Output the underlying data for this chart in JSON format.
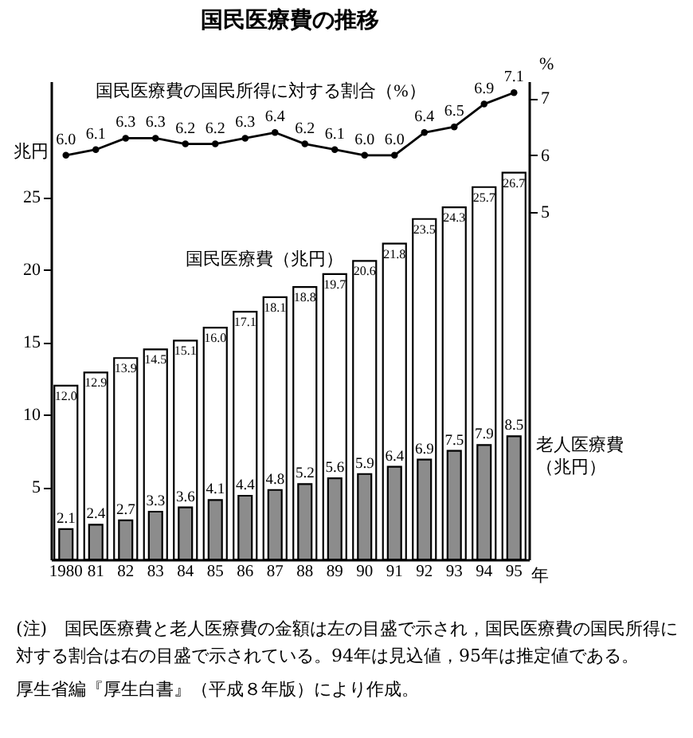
{
  "chart_data": {
    "type": "bar",
    "title": "国民医療費の推移",
    "categories": [
      "1980",
      "81",
      "82",
      "83",
      "84",
      "85",
      "86",
      "87",
      "88",
      "89",
      "90",
      "91",
      "92",
      "93",
      "94",
      "95"
    ],
    "series": [
      {
        "name": "国民医療費（兆円）",
        "color": "#ffffff",
        "values": [
          12.0,
          12.9,
          13.9,
          14.5,
          15.1,
          16.0,
          17.1,
          18.1,
          18.8,
          19.7,
          20.6,
          21.8,
          23.5,
          24.3,
          25.7,
          26.7
        ],
        "value_labels": [
          "12.0",
          "12.9",
          "13.9",
          "14.5",
          "15.1",
          "16.0",
          "17.1",
          "18.1",
          "18.8",
          "19.7",
          "20.6",
          "21.8",
          "23.5",
          "24.3",
          "25.7",
          "26.7"
        ]
      },
      {
        "name": "老人医療費（兆円）",
        "color": "#8c8c8c",
        "values": [
          2.1,
          2.4,
          2.7,
          3.3,
          3.6,
          4.1,
          4.4,
          4.8,
          5.2,
          5.6,
          5.9,
          6.4,
          6.9,
          7.5,
          7.9,
          8.5
        ],
        "value_labels": [
          "2.1",
          "2.4",
          "2.7",
          "3.3",
          "3.6",
          "4.1",
          "4.4",
          "4.8",
          "5.2",
          "5.6",
          "5.9",
          "6.4",
          "6.9",
          "7.5",
          "7.9",
          "8.5"
        ]
      },
      {
        "name": "国民医療費の国民所得に対する割合（%）",
        "type": "line",
        "axis": "y2",
        "color": "#000000",
        "values": [
          6.0,
          6.1,
          6.3,
          6.3,
          6.2,
          6.2,
          6.3,
          6.4,
          6.2,
          6.1,
          6.0,
          6.0,
          6.4,
          6.5,
          6.9,
          7.1
        ],
        "value_labels": [
          "6.0",
          "6.1",
          "6.3",
          "6.3",
          "6.2",
          "6.2",
          "6.3",
          "6.4",
          "6.2",
          "6.1",
          "6.0",
          "6.0",
          "6.4",
          "6.5",
          "6.9",
          "7.1"
        ]
      }
    ],
    "ylim": [
      0,
      33
    ],
    "yticks": [
      5,
      10,
      15,
      20,
      25
    ],
    "ylabel": "兆円",
    "y2lim": [
      -1.1,
      7.3
    ],
    "y2ticks": [
      5,
      6,
      7
    ],
    "y2label": "%",
    "xlabel": "年",
    "marker": "circle",
    "grid": false,
    "annotations": [
      "(注)　国民医療費と老人医療費の金額は左の目盛で示され，国民医療費の国民所得に対する割合は右の目盛で示されている。94年は見込値，95年は推定値である。",
      "厚生省編『厚生白書』（平成８年版）により作成。"
    ]
  }
}
